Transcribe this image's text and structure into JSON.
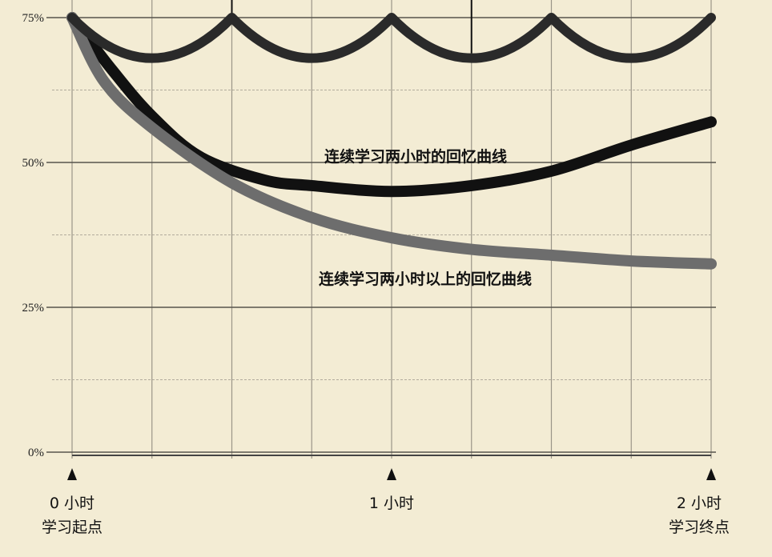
{
  "chart_data": {
    "type": "line",
    "y_ticks": [
      "75%",
      "50%",
      "25%",
      "0%"
    ],
    "ylim": [
      0,
      75
    ],
    "x_range": [
      0,
      2
    ],
    "x_ticks": [
      {
        "x": 0,
        "line1": "0 小时",
        "line2": "学习起点"
      },
      {
        "x": 1,
        "line1": "1 小时",
        "line2": ""
      },
      {
        "x": 2,
        "line1": "2 小时",
        "line2": "学习终点"
      }
    ],
    "series": [
      {
        "name": "连续学习两小时的回忆曲线",
        "color": "#111111",
        "points": [
          [
            0,
            75
          ],
          [
            0.125,
            66
          ],
          [
            0.25,
            58
          ],
          [
            0.4,
            51
          ],
          [
            0.6,
            47
          ],
          [
            0.75,
            46
          ],
          [
            1.0,
            45
          ],
          [
            1.25,
            46
          ],
          [
            1.5,
            48.5
          ],
          [
            1.75,
            53
          ],
          [
            2.0,
            57
          ]
        ]
      },
      {
        "name": "连续学习两小时以上的回忆曲线",
        "color": "#6d6d6d",
        "points": [
          [
            0,
            75
          ],
          [
            0.1,
            64
          ],
          [
            0.25,
            56
          ],
          [
            0.5,
            46.5
          ],
          [
            0.75,
            40.5
          ],
          [
            1.0,
            37
          ],
          [
            1.25,
            35
          ],
          [
            1.5,
            34
          ],
          [
            1.75,
            33
          ],
          [
            2.0,
            32.5
          ]
        ]
      },
      {
        "name": "",
        "color": "#2a2a2a",
        "points": [
          [
            0,
            75
          ],
          [
            0.25,
            68
          ],
          [
            0.5,
            75
          ],
          [
            0.75,
            68
          ],
          [
            1.0,
            75
          ],
          [
            1.25,
            68
          ],
          [
            1.5,
            75
          ],
          [
            1.75,
            68
          ],
          [
            2.0,
            75
          ]
        ]
      }
    ]
  }
}
